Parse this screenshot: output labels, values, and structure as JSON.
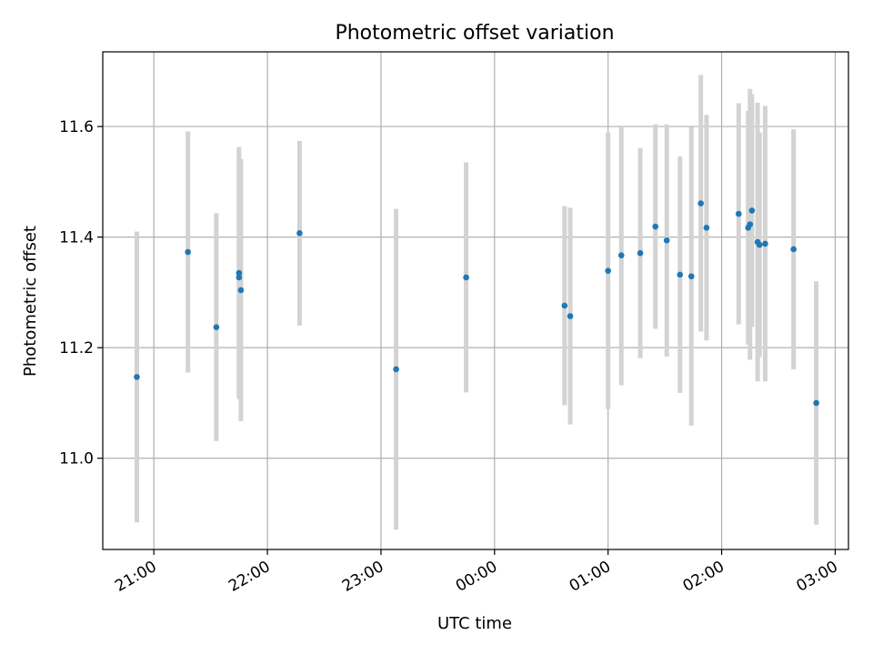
{
  "chart_data": {
    "type": "scatter",
    "title": "Photometric offset variation",
    "xlabel": "UTC time",
    "ylabel": "Photometric offset",
    "x_unit": "UTC",
    "xlim": [
      "20:33",
      "03:07"
    ],
    "ylim": [
      10.835,
      11.735
    ],
    "x_ticks": [
      "21:00",
      "22:00",
      "23:00",
      "00:00",
      "01:00",
      "02:00",
      "03:00"
    ],
    "y_ticks": [
      "11.0",
      "11.2",
      "11.4",
      "11.6"
    ],
    "grid": true,
    "error_bar_color": "#d3d3d3",
    "marker_color": "#1f77b4",
    "points": [
      {
        "time": "20:51",
        "y": 11.147,
        "err": 0.263
      },
      {
        "time": "21:18",
        "y": 11.373,
        "err": 0.218
      },
      {
        "time": "21:33",
        "y": 11.237,
        "err": 0.206
      },
      {
        "time": "21:45",
        "y": 11.335,
        "err": 0.228
      },
      {
        "time": "21:45",
        "y": 11.327,
        "err": 0.216
      },
      {
        "time": "21:46",
        "y": 11.304,
        "err": 0.237
      },
      {
        "time": "22:17",
        "y": 11.407,
        "err": 0.167
      },
      {
        "time": "23:08",
        "y": 11.161,
        "err": 0.29
      },
      {
        "time": "23:45",
        "y": 11.327,
        "err": 0.208
      },
      {
        "time": "00:37",
        "y": 11.276,
        "err": 0.18
      },
      {
        "time": "00:40",
        "y": 11.257,
        "err": 0.196
      },
      {
        "time": "01:00",
        "y": 11.339,
        "err": 0.25
      },
      {
        "time": "01:07",
        "y": 11.367,
        "err": 0.235
      },
      {
        "time": "01:17",
        "y": 11.371,
        "err": 0.19
      },
      {
        "time": "01:25",
        "y": 11.419,
        "err": 0.185
      },
      {
        "time": "01:31",
        "y": 11.394,
        "err": 0.21
      },
      {
        "time": "01:38",
        "y": 11.332,
        "err": 0.214
      },
      {
        "time": "01:44",
        "y": 11.329,
        "err": 0.27
      },
      {
        "time": "01:49",
        "y": 11.461,
        "err": 0.232
      },
      {
        "time": "01:52",
        "y": 11.417,
        "err": 0.204
      },
      {
        "time": "02:09",
        "y": 11.442,
        "err": 0.2
      },
      {
        "time": "02:14",
        "y": 11.417,
        "err": 0.211
      },
      {
        "time": "02:15",
        "y": 11.423,
        "err": 0.245
      },
      {
        "time": "02:16",
        "y": 11.448,
        "err": 0.21
      },
      {
        "time": "02:19",
        "y": 11.391,
        "err": 0.252
      },
      {
        "time": "02:20",
        "y": 11.386,
        "err": 0.203
      },
      {
        "time": "02:23",
        "y": 11.388,
        "err": 0.249
      },
      {
        "time": "02:38",
        "y": 11.378,
        "err": 0.217
      },
      {
        "time": "02:50",
        "y": 11.1,
        "err": 0.22
      }
    ]
  }
}
